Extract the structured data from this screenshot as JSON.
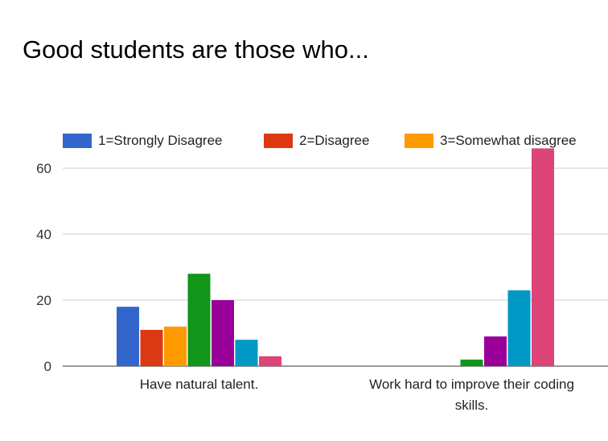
{
  "chart_data": {
    "type": "bar",
    "title": "Good students are those who...",
    "categories": [
      [
        "Have natural talent."
      ],
      [
        "Work hard to improve their coding",
        "skills."
      ]
    ],
    "yticks": [
      "0",
      "20",
      "40",
      "60"
    ],
    "ylim": [
      0,
      70
    ],
    "grid": true,
    "legend_position": "top",
    "series": [
      {
        "name": "1=Strongly Disagree",
        "color": "#3366cc",
        "values": [
          18,
          0
        ]
      },
      {
        "name": "2=Disagree",
        "color": "#dc3912",
        "values": [
          11,
          0
        ]
      },
      {
        "name": "3=Somewhat disagree",
        "color": "#ff9900",
        "values": [
          12,
          0
        ]
      },
      {
        "color": "#109618",
        "values": [
          28,
          2
        ]
      },
      {
        "color": "#990099",
        "values": [
          20,
          9
        ]
      },
      {
        "color": "#0099c6",
        "values": [
          8,
          23
        ]
      },
      {
        "color": "#dd4477",
        "values": [
          3,
          66
        ]
      }
    ]
  }
}
